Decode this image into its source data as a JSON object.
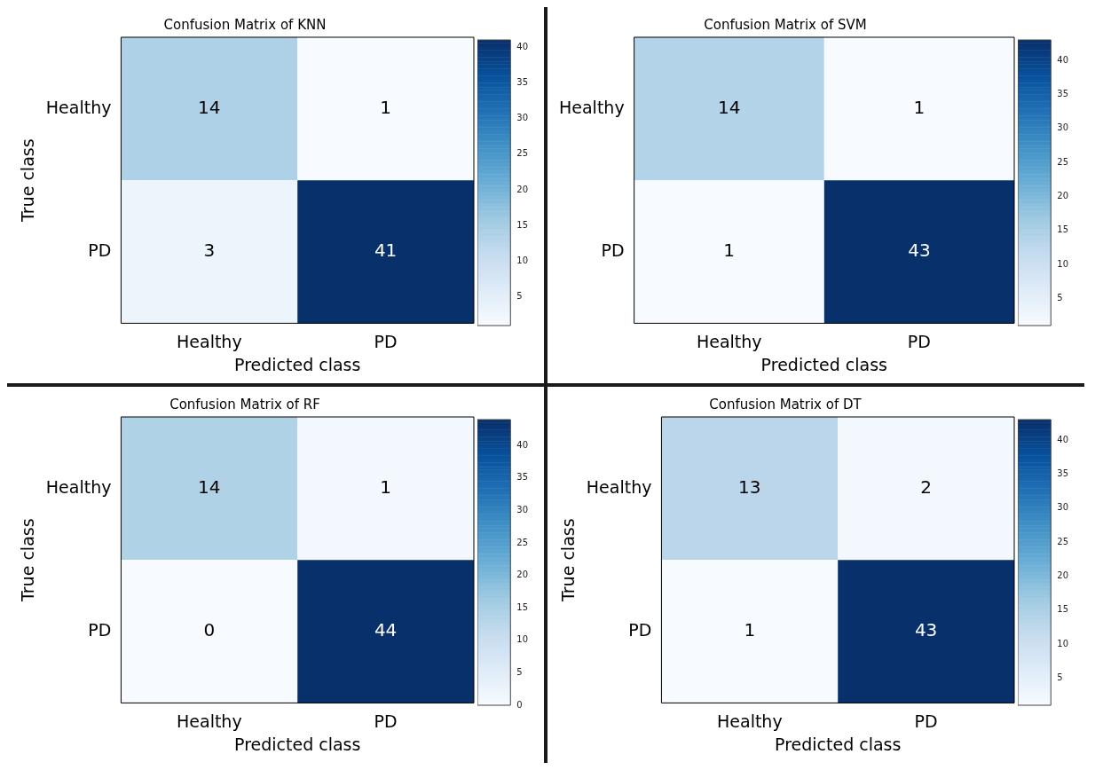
{
  "chart_data": [
    {
      "type": "heatmap",
      "title": "Confusion Matrix of KNN",
      "xlabel": "Predicted class",
      "ylabel": "True class",
      "categories": [
        "Healthy",
        "PD"
      ],
      "y_categories": [
        "Healthy",
        "PD"
      ],
      "cells": [
        [
          14,
          1
        ],
        [
          3,
          41
        ]
      ],
      "clim": [
        1,
        41
      ],
      "cticks": [
        5,
        10,
        15,
        20,
        25,
        30,
        35,
        40
      ],
      "data_labels": true
    },
    {
      "type": "heatmap",
      "title": "Confusion Matrix of SVM",
      "xlabel": "Predicted class",
      "categories": [
        "Healthy",
        "PD"
      ],
      "y_categories": [
        "Healthy",
        "PD"
      ],
      "cells": [
        [
          14,
          1
        ],
        [
          1,
          43
        ]
      ],
      "clim": [
        1,
        43
      ],
      "cticks": [
        5,
        10,
        15,
        20,
        25,
        30,
        35,
        40
      ],
      "data_labels": true
    },
    {
      "type": "heatmap",
      "title": "Confusion Matrix of RF",
      "xlabel": "Predicted class",
      "ylabel": "True class",
      "categories": [
        "Healthy",
        "PD"
      ],
      "y_categories": [
        "Healthy",
        "PD"
      ],
      "cells": [
        [
          14,
          1
        ],
        [
          0,
          44
        ]
      ],
      "clim": [
        0,
        44
      ],
      "cticks": [
        0,
        5,
        10,
        15,
        20,
        25,
        30,
        35,
        40
      ],
      "data_labels": true
    },
    {
      "type": "heatmap",
      "title": "Confusion Matrix of DT",
      "xlabel": "Predicted class",
      "ylabel": "True class",
      "categories": [
        "Healthy",
        "PD"
      ],
      "y_categories": [
        "Healthy",
        "PD"
      ],
      "cells": [
        [
          13,
          2
        ],
        [
          1,
          43
        ]
      ],
      "clim": [
        1,
        43
      ],
      "cticks": [
        5,
        10,
        15,
        20,
        25,
        30,
        35,
        40
      ],
      "data_labels": true
    }
  ]
}
